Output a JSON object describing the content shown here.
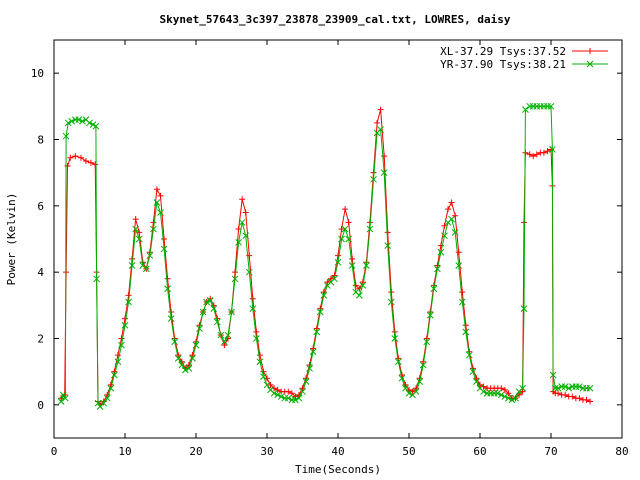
{
  "chart_data": {
    "type": "line",
    "title": "Skynet_57643_3c397_23878_23909_cal.txt, LOWRES, daisy",
    "xlabel": "Time(Seconds)",
    "ylabel": "Power (Kelvin)",
    "xlim": [
      0,
      80
    ],
    "ylim": [
      -1,
      11
    ],
    "x_ticks": [
      0,
      10,
      20,
      30,
      40,
      50,
      60,
      70,
      80
    ],
    "y_ticks": [
      0,
      2,
      4,
      6,
      8,
      10
    ],
    "grid": false,
    "legend_position": "top-right",
    "series": [
      {
        "name": "XL-37.29 Tsys:37.52",
        "color": "#ff0000",
        "marker": "plus",
        "points": [
          [
            1.0,
            0.2
          ],
          [
            1.5,
            0.3
          ],
          [
            1.7,
            4.0
          ],
          [
            1.9,
            7.2
          ],
          [
            2.3,
            7.45
          ],
          [
            3.0,
            7.5
          ],
          [
            3.8,
            7.45
          ],
          [
            4.5,
            7.35
          ],
          [
            5.2,
            7.3
          ],
          [
            5.8,
            7.25
          ],
          [
            6.0,
            4.0
          ],
          [
            6.2,
            0.1
          ],
          [
            6.6,
            0.0
          ],
          [
            7.0,
            0.1
          ],
          [
            7.5,
            0.3
          ],
          [
            8.0,
            0.6
          ],
          [
            8.5,
            1.0
          ],
          [
            9.0,
            1.5
          ],
          [
            9.5,
            2.0
          ],
          [
            10.0,
            2.6
          ],
          [
            10.5,
            3.3
          ],
          [
            11.0,
            4.4
          ],
          [
            11.5,
            5.6
          ],
          [
            12.0,
            5.2
          ],
          [
            12.5,
            4.3
          ],
          [
            13.0,
            4.1
          ],
          [
            13.5,
            4.6
          ],
          [
            14.0,
            5.5
          ],
          [
            14.5,
            6.5
          ],
          [
            15.0,
            6.3
          ],
          [
            15.5,
            5.0
          ],
          [
            16.0,
            3.8
          ],
          [
            16.5,
            2.8
          ],
          [
            17.0,
            2.0
          ],
          [
            17.5,
            1.5
          ],
          [
            18.0,
            1.3
          ],
          [
            18.5,
            1.1
          ],
          [
            19.0,
            1.2
          ],
          [
            19.5,
            1.5
          ],
          [
            20.0,
            1.9
          ],
          [
            20.5,
            2.4
          ],
          [
            21.0,
            2.8
          ],
          [
            21.5,
            3.1
          ],
          [
            22.0,
            3.2
          ],
          [
            22.5,
            3.0
          ],
          [
            23.0,
            2.6
          ],
          [
            23.5,
            2.1
          ],
          [
            24.0,
            1.8
          ],
          [
            24.5,
            2.0
          ],
          [
            25.0,
            2.8
          ],
          [
            25.5,
            4.0
          ],
          [
            26.0,
            5.3
          ],
          [
            26.5,
            6.2
          ],
          [
            27.0,
            5.8
          ],
          [
            27.5,
            4.5
          ],
          [
            28.0,
            3.2
          ],
          [
            28.5,
            2.2
          ],
          [
            29.0,
            1.5
          ],
          [
            29.5,
            1.0
          ],
          [
            30.0,
            0.8
          ],
          [
            30.5,
            0.6
          ],
          [
            31.0,
            0.5
          ],
          [
            31.5,
            0.45
          ],
          [
            32.0,
            0.4
          ],
          [
            32.5,
            0.4
          ],
          [
            33.0,
            0.4
          ],
          [
            33.5,
            0.35
          ],
          [
            34.0,
            0.25
          ],
          [
            34.5,
            0.3
          ],
          [
            35.0,
            0.5
          ],
          [
            35.5,
            0.8
          ],
          [
            36.0,
            1.2
          ],
          [
            36.5,
            1.7
          ],
          [
            37.0,
            2.3
          ],
          [
            37.5,
            2.9
          ],
          [
            38.0,
            3.4
          ],
          [
            38.5,
            3.7
          ],
          [
            39.0,
            3.8
          ],
          [
            39.5,
            3.9
          ],
          [
            40.0,
            4.5
          ],
          [
            40.5,
            5.3
          ],
          [
            41.0,
            5.9
          ],
          [
            41.5,
            5.5
          ],
          [
            42.0,
            4.4
          ],
          [
            42.5,
            3.6
          ],
          [
            43.0,
            3.5
          ],
          [
            43.5,
            3.7
          ],
          [
            44.0,
            4.3
          ],
          [
            44.5,
            5.5
          ],
          [
            45.0,
            7.0
          ],
          [
            45.5,
            8.5
          ],
          [
            46.0,
            8.9
          ],
          [
            46.5,
            7.5
          ],
          [
            47.0,
            5.2
          ],
          [
            47.5,
            3.4
          ],
          [
            48.0,
            2.2
          ],
          [
            48.5,
            1.4
          ],
          [
            49.0,
            0.9
          ],
          [
            49.5,
            0.6
          ],
          [
            50.0,
            0.45
          ],
          [
            50.5,
            0.4
          ],
          [
            51.0,
            0.5
          ],
          [
            51.5,
            0.8
          ],
          [
            52.0,
            1.3
          ],
          [
            52.5,
            2.0
          ],
          [
            53.0,
            2.8
          ],
          [
            53.5,
            3.6
          ],
          [
            54.0,
            4.2
          ],
          [
            54.5,
            4.8
          ],
          [
            55.0,
            5.4
          ],
          [
            55.5,
            5.9
          ],
          [
            56.0,
            6.1
          ],
          [
            56.5,
            5.7
          ],
          [
            57.0,
            4.6
          ],
          [
            57.5,
            3.4
          ],
          [
            58.0,
            2.4
          ],
          [
            58.5,
            1.6
          ],
          [
            59.0,
            1.1
          ],
          [
            59.5,
            0.8
          ],
          [
            60.0,
            0.6
          ],
          [
            60.5,
            0.55
          ],
          [
            61.0,
            0.5
          ],
          [
            61.5,
            0.5
          ],
          [
            62.0,
            0.5
          ],
          [
            62.5,
            0.5
          ],
          [
            63.0,
            0.5
          ],
          [
            63.5,
            0.45
          ],
          [
            64.0,
            0.35
          ],
          [
            64.5,
            0.2
          ],
          [
            65.0,
            0.2
          ],
          [
            65.5,
            0.3
          ],
          [
            66.0,
            0.4
          ],
          [
            66.2,
            5.5
          ],
          [
            66.4,
            7.6
          ],
          [
            67.0,
            7.55
          ],
          [
            67.5,
            7.5
          ],
          [
            68.0,
            7.55
          ],
          [
            68.5,
            7.6
          ],
          [
            69.0,
            7.6
          ],
          [
            69.5,
            7.65
          ],
          [
            70.0,
            7.7
          ],
          [
            70.2,
            6.6
          ],
          [
            70.3,
            0.4
          ],
          [
            70.6,
            0.35
          ],
          [
            71.0,
            0.35
          ],
          [
            71.5,
            0.3
          ],
          [
            72.0,
            0.3
          ],
          [
            72.5,
            0.25
          ],
          [
            73.0,
            0.25
          ],
          [
            73.5,
            0.2
          ],
          [
            74.0,
            0.2
          ],
          [
            74.5,
            0.15
          ],
          [
            75.0,
            0.15
          ],
          [
            75.5,
            0.1
          ]
        ]
      },
      {
        "name": "YR-37.90 Tsys:38.21",
        "color": "#00b000",
        "marker": "cross",
        "points": [
          [
            1.0,
            0.1
          ],
          [
            1.3,
            0.3
          ],
          [
            1.6,
            0.2
          ],
          [
            1.7,
            8.1
          ],
          [
            2.0,
            8.5
          ],
          [
            2.5,
            8.55
          ],
          [
            3.0,
            8.6
          ],
          [
            3.5,
            8.6
          ],
          [
            4.0,
            8.55
          ],
          [
            4.5,
            8.6
          ],
          [
            5.0,
            8.5
          ],
          [
            5.5,
            8.45
          ],
          [
            5.9,
            8.4
          ],
          [
            6.0,
            3.8
          ],
          [
            6.2,
            0.05
          ],
          [
            6.5,
            -0.05
          ],
          [
            7.0,
            0.05
          ],
          [
            7.5,
            0.2
          ],
          [
            8.0,
            0.5
          ],
          [
            8.5,
            0.9
          ],
          [
            9.0,
            1.3
          ],
          [
            9.5,
            1.8
          ],
          [
            10.0,
            2.4
          ],
          [
            10.5,
            3.1
          ],
          [
            11.0,
            4.2
          ],
          [
            11.5,
            5.3
          ],
          [
            12.0,
            5.0
          ],
          [
            12.5,
            4.2
          ],
          [
            13.0,
            4.1
          ],
          [
            13.5,
            4.5
          ],
          [
            14.0,
            5.3
          ],
          [
            14.5,
            6.1
          ],
          [
            15.0,
            5.8
          ],
          [
            15.5,
            4.7
          ],
          [
            16.0,
            3.5
          ],
          [
            16.5,
            2.6
          ],
          [
            17.0,
            1.9
          ],
          [
            17.5,
            1.4
          ],
          [
            18.0,
            1.2
          ],
          [
            18.5,
            1.05
          ],
          [
            19.0,
            1.1
          ],
          [
            19.5,
            1.4
          ],
          [
            20.0,
            1.8
          ],
          [
            20.5,
            2.3
          ],
          [
            21.0,
            2.8
          ],
          [
            21.5,
            3.1
          ],
          [
            22.0,
            3.15
          ],
          [
            22.5,
            2.9
          ],
          [
            23.0,
            2.5
          ],
          [
            23.5,
            2.1
          ],
          [
            24.0,
            1.9
          ],
          [
            24.5,
            2.1
          ],
          [
            25.0,
            2.8
          ],
          [
            25.5,
            3.8
          ],
          [
            26.0,
            4.9
          ],
          [
            26.5,
            5.5
          ],
          [
            27.0,
            5.1
          ],
          [
            27.5,
            4.0
          ],
          [
            28.0,
            2.9
          ],
          [
            28.5,
            2.0
          ],
          [
            29.0,
            1.3
          ],
          [
            29.5,
            0.85
          ],
          [
            30.0,
            0.6
          ],
          [
            30.5,
            0.45
          ],
          [
            31.0,
            0.35
          ],
          [
            31.5,
            0.3
          ],
          [
            32.0,
            0.25
          ],
          [
            32.5,
            0.2
          ],
          [
            33.0,
            0.2
          ],
          [
            33.5,
            0.15
          ],
          [
            34.0,
            0.15
          ],
          [
            34.5,
            0.2
          ],
          [
            35.0,
            0.4
          ],
          [
            35.5,
            0.7
          ],
          [
            36.0,
            1.1
          ],
          [
            36.5,
            1.6
          ],
          [
            37.0,
            2.2
          ],
          [
            37.5,
            2.8
          ],
          [
            38.0,
            3.3
          ],
          [
            38.5,
            3.6
          ],
          [
            39.0,
            3.7
          ],
          [
            39.5,
            3.8
          ],
          [
            40.0,
            4.3
          ],
          [
            40.5,
            5.0
          ],
          [
            41.0,
            5.3
          ],
          [
            41.5,
            5.0
          ],
          [
            42.0,
            4.2
          ],
          [
            42.5,
            3.4
          ],
          [
            43.0,
            3.3
          ],
          [
            43.5,
            3.6
          ],
          [
            44.0,
            4.2
          ],
          [
            44.5,
            5.3
          ],
          [
            45.0,
            6.8
          ],
          [
            45.5,
            8.2
          ],
          [
            46.0,
            8.3
          ],
          [
            46.5,
            7.0
          ],
          [
            47.0,
            4.8
          ],
          [
            47.5,
            3.1
          ],
          [
            48.0,
            2.0
          ],
          [
            48.5,
            1.3
          ],
          [
            49.0,
            0.8
          ],
          [
            49.5,
            0.5
          ],
          [
            50.0,
            0.35
          ],
          [
            50.5,
            0.3
          ],
          [
            51.0,
            0.4
          ],
          [
            51.5,
            0.7
          ],
          [
            52.0,
            1.2
          ],
          [
            52.5,
            1.9
          ],
          [
            53.0,
            2.7
          ],
          [
            53.5,
            3.5
          ],
          [
            54.0,
            4.1
          ],
          [
            54.5,
            4.6
          ],
          [
            55.0,
            5.1
          ],
          [
            55.5,
            5.5
          ],
          [
            56.0,
            5.6
          ],
          [
            56.5,
            5.2
          ],
          [
            57.0,
            4.2
          ],
          [
            57.5,
            3.1
          ],
          [
            58.0,
            2.2
          ],
          [
            58.5,
            1.5
          ],
          [
            59.0,
            1.0
          ],
          [
            59.5,
            0.7
          ],
          [
            60.0,
            0.5
          ],
          [
            60.5,
            0.4
          ],
          [
            61.0,
            0.35
          ],
          [
            61.5,
            0.35
          ],
          [
            62.0,
            0.35
          ],
          [
            62.5,
            0.35
          ],
          [
            63.0,
            0.3
          ],
          [
            63.5,
            0.25
          ],
          [
            64.0,
            0.2
          ],
          [
            64.5,
            0.15
          ],
          [
            65.0,
            0.2
          ],
          [
            65.5,
            0.4
          ],
          [
            66.0,
            0.5
          ],
          [
            66.2,
            2.9
          ],
          [
            66.4,
            8.9
          ],
          [
            67.0,
            9.0
          ],
          [
            67.5,
            9.0
          ],
          [
            68.0,
            9.0
          ],
          [
            68.5,
            9.0
          ],
          [
            69.0,
            9.0
          ],
          [
            69.5,
            9.0
          ],
          [
            70.0,
            9.0
          ],
          [
            70.2,
            7.7
          ],
          [
            70.3,
            0.9
          ],
          [
            70.6,
            0.5
          ],
          [
            71.0,
            0.5
          ],
          [
            71.5,
            0.55
          ],
          [
            72.0,
            0.55
          ],
          [
            72.5,
            0.5
          ],
          [
            73.0,
            0.55
          ],
          [
            73.5,
            0.55
          ],
          [
            74.0,
            0.55
          ],
          [
            74.5,
            0.5
          ],
          [
            75.0,
            0.5
          ],
          [
            75.5,
            0.5
          ]
        ]
      }
    ]
  }
}
